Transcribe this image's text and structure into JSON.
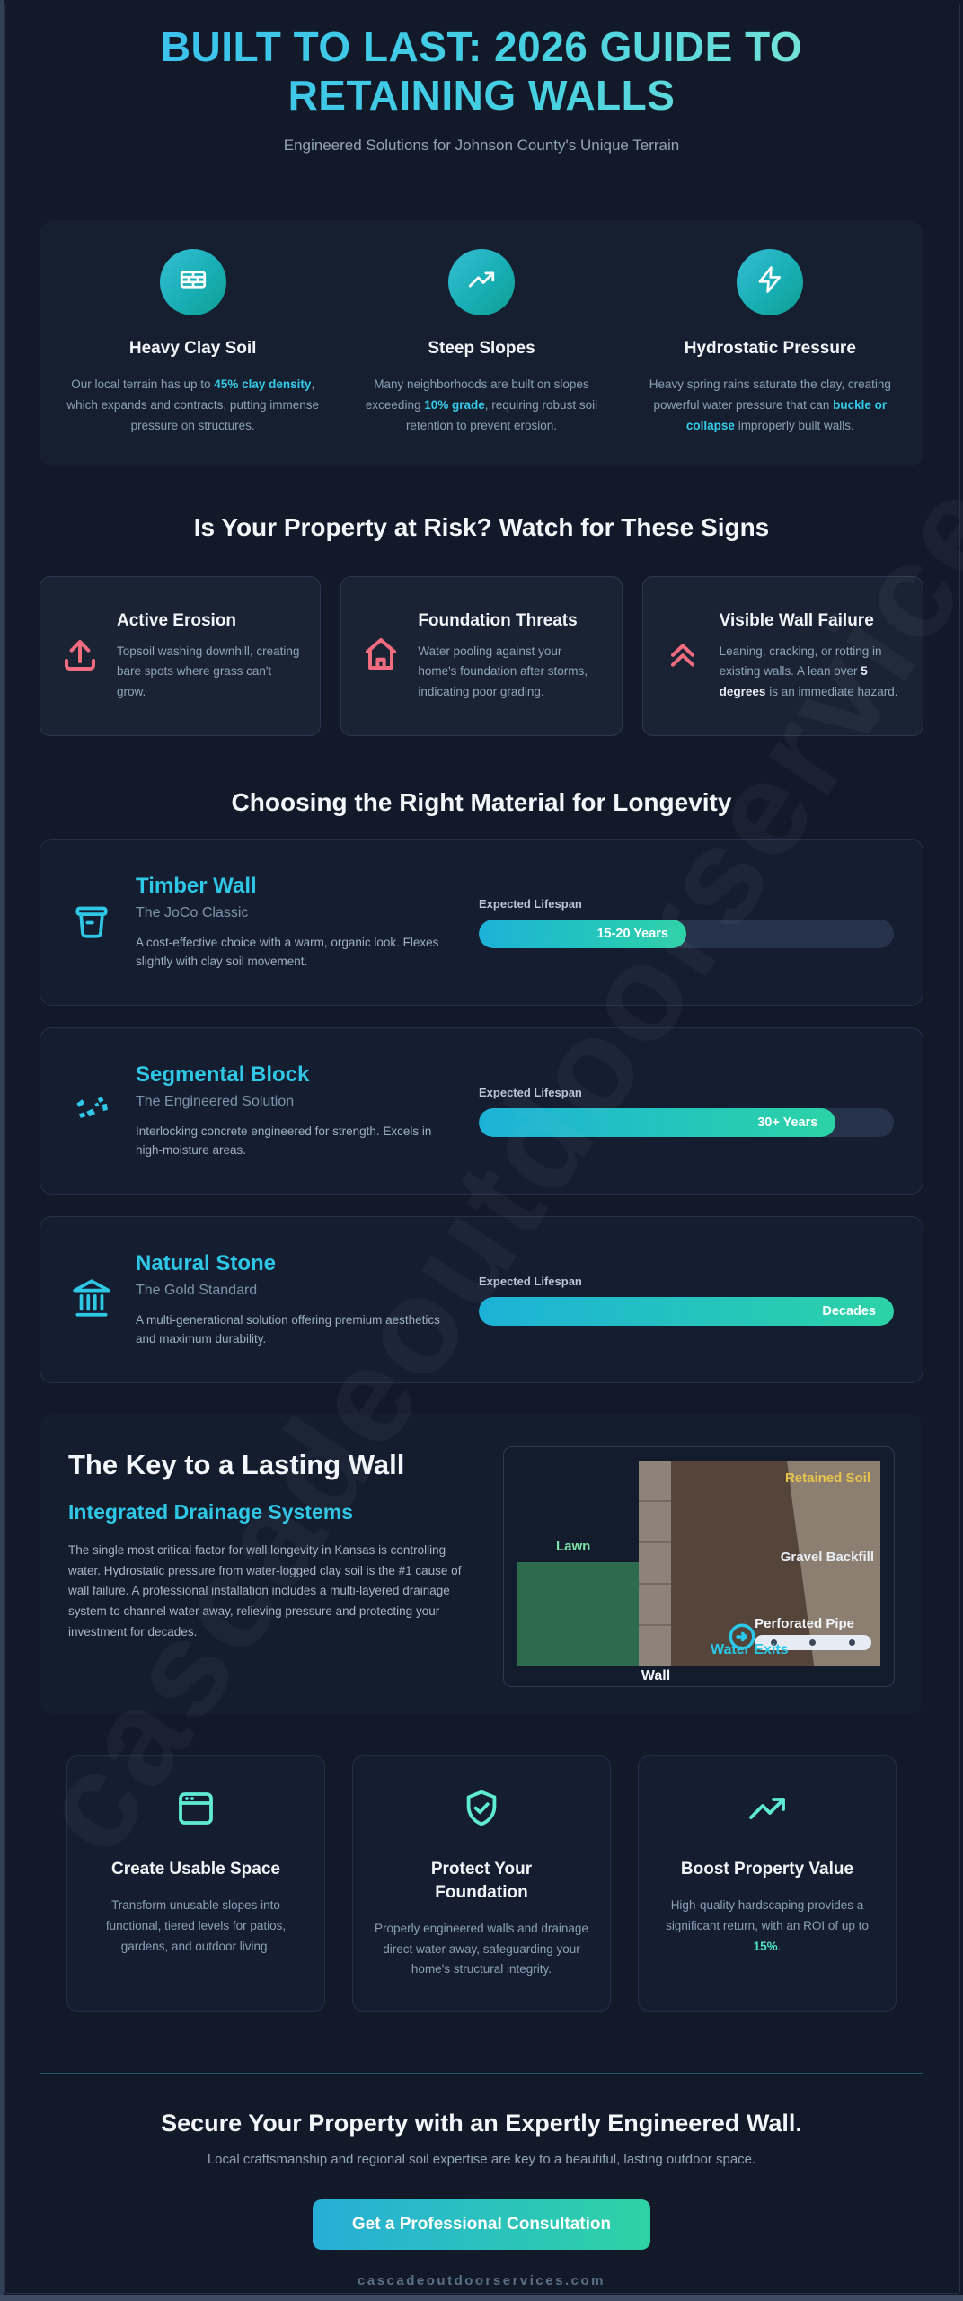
{
  "page": {
    "title_line1": "BUILT TO LAST: 2026 GUIDE TO",
    "title_line2": "RETAINING WALLS",
    "subtitle": "Engineered Solutions for Johnson County's Unique Terrain",
    "watermark": "cascadeoutdoorservices.com"
  },
  "colors": {
    "accent_cyan": "#2fc7e6",
    "danger_pink": "#f26c7f",
    "mint": "#5eead4",
    "gold": "#e8c54a",
    "bar_gradient_start": "#1cb2d8",
    "bar_gradient_end": "#2cd3a6",
    "page_bg": "#121a2a",
    "card_bg": "#151e30"
  },
  "challenges": {
    "items": [
      {
        "icon": "bricks-icon",
        "title": "Heavy Clay Soil",
        "text_pre": "Our local terrain has up to ",
        "highlight": "45% clay density",
        "text_post": ", which expands and contracts, putting immense pressure on structures."
      },
      {
        "icon": "trend-up-icon",
        "title": "Steep Slopes",
        "text_pre": "Many neighborhoods are built on slopes exceeding ",
        "highlight": "10% grade",
        "text_post": ", requiring robust soil retention to prevent erosion."
      },
      {
        "icon": "lightning-icon",
        "title": "Hydrostatic Pressure",
        "text_pre": "Heavy spring rains saturate the clay, creating powerful water pressure that can ",
        "highlight": "buckle or collapse",
        "text_post": " improperly built walls."
      }
    ]
  },
  "risk": {
    "heading": "Is Your Property at Risk? Watch for These Signs",
    "cards": [
      {
        "icon": "upload-arrow-icon",
        "title": "Active Erosion",
        "text_pre": "Topsoil washing downhill, creating bare spots where grass can't grow.",
        "bold": "",
        "text_post": ""
      },
      {
        "icon": "home-icon",
        "title": "Foundation Threats",
        "text_pre": "Water pooling against your home's foundation after storms, indicating poor grading.",
        "bold": "",
        "text_post": ""
      },
      {
        "icon": "chevrons-up-icon",
        "title": "Visible Wall Failure",
        "text_pre": "Leaning, cracking, or rotting in existing walls. A lean over ",
        "bold": "5 degrees",
        "text_post": " is an immediate hazard."
      }
    ]
  },
  "materials": {
    "heading": "Choosing the Right Material for Longevity",
    "lifespan_label": "Expected Lifespan",
    "cards": [
      {
        "icon": "timber-bucket-icon",
        "title": "Timber Wall",
        "subtitle": "The JoCo Classic",
        "text": "A cost-effective choice with a warm, organic look. Flexes slightly with clay soil movement.",
        "bar_label": "15-20 Years",
        "bar_pct": 50
      },
      {
        "icon": "block-fragments-icon",
        "title": "Segmental Block",
        "subtitle": "The Engineered Solution",
        "text": "Interlocking concrete engineered for strength. Excels in high-moisture areas.",
        "bar_label": "30+ Years",
        "bar_pct": 86
      },
      {
        "icon": "stone-landmark-icon",
        "title": "Natural Stone",
        "subtitle": "The Gold Standard",
        "text": "A multi-generational solution offering premium aesthetics and maximum durability.",
        "bar_label": "Decades",
        "bar_pct": 100
      }
    ]
  },
  "key_section": {
    "heading": "The Key to a Lasting Wall",
    "subheading": "Integrated Drainage Systems",
    "body": "The single most critical factor for wall longevity in Kansas is controlling water. Hydrostatic pressure from water-logged clay soil is the #1 cause of wall failure. A professional installation includes a multi-layered drainage system to channel water away, relieving pressure and protecting your investment for decades.",
    "diagram": {
      "retained_soil": "Retained Soil",
      "gravel_backfill": "Gravel Backfill",
      "lawn": "Lawn",
      "wall": "Wall",
      "perforated_pipe": "Perforated Pipe",
      "water_exits": "Water Exits"
    }
  },
  "benefits": {
    "cards": [
      {
        "icon": "frame-icon",
        "title": "Create Usable Space",
        "text_pre": "Transform unusable slopes into functional, tiered levels for patios, gardens, and outdoor living.",
        "highlight": "",
        "text_post": ""
      },
      {
        "icon": "shield-check-icon",
        "title": "Protect Your Foundation",
        "text_pre": "Properly engineered walls and drainage direct water away, safeguarding your home's structural integrity.",
        "highlight": "",
        "text_post": ""
      },
      {
        "icon": "trend-up-icon",
        "title": "Boost Property Value",
        "text_pre": "High-quality hardscaping provides a significant return, with an ROI of up to ",
        "highlight": "15%",
        "text_post": "."
      }
    ]
  },
  "footer": {
    "heading": "Secure Your Property with an Expertly Engineered Wall.",
    "subtext": "Local craftsmanship and regional soil expertise are key to a beautiful, lasting outdoor space.",
    "cta_label": "Get a Professional Consultation",
    "domain": "cascadeoutdoorservices.com"
  }
}
